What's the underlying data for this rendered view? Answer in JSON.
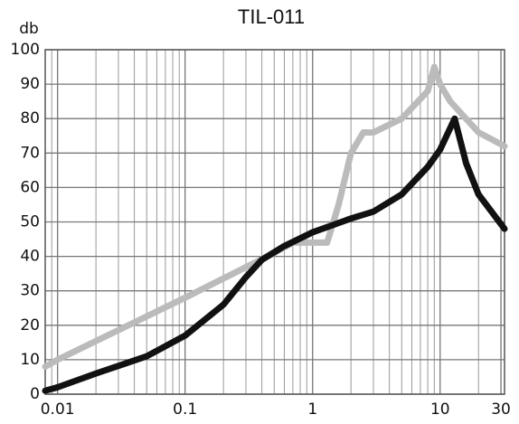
{
  "chart_data": {
    "type": "line",
    "title": "TIL-011",
    "y_label": "db",
    "log_x": true,
    "grid": true,
    "xlim": [
      0.008,
      32
    ],
    "ylim": [
      0,
      100
    ],
    "xticks": [
      0.01,
      0.1,
      1,
      10,
      30
    ],
    "yticks": [
      0,
      10,
      20,
      30,
      40,
      50,
      60,
      70,
      80,
      90,
      100
    ],
    "series": [
      {
        "name": null,
        "color": "#111111",
        "x": [
          0.008,
          0.01,
          0.02,
          0.05,
          0.1,
          0.2,
          0.3,
          0.4,
          0.6,
          1,
          2,
          3,
          5,
          8,
          10,
          13,
          16,
          20,
          32
        ],
        "values": [
          1,
          2,
          6,
          11,
          17,
          26,
          34,
          39,
          43,
          47,
          51,
          53,
          58,
          66,
          71,
          80,
          67,
          58,
          48
        ]
      },
      {
        "name": null,
        "color": "#bbbbbb",
        "x": [
          0.008,
          0.01,
          0.1,
          0.5,
          0.7,
          1,
          1.3,
          1.6,
          2,
          2.5,
          3,
          5,
          8,
          9,
          10,
          12,
          20,
          32
        ],
        "values": [
          8,
          10,
          28,
          41,
          44,
          44,
          44,
          55,
          70,
          76,
          76,
          80,
          88,
          95,
          90,
          85,
          76,
          72
        ]
      }
    ]
  }
}
